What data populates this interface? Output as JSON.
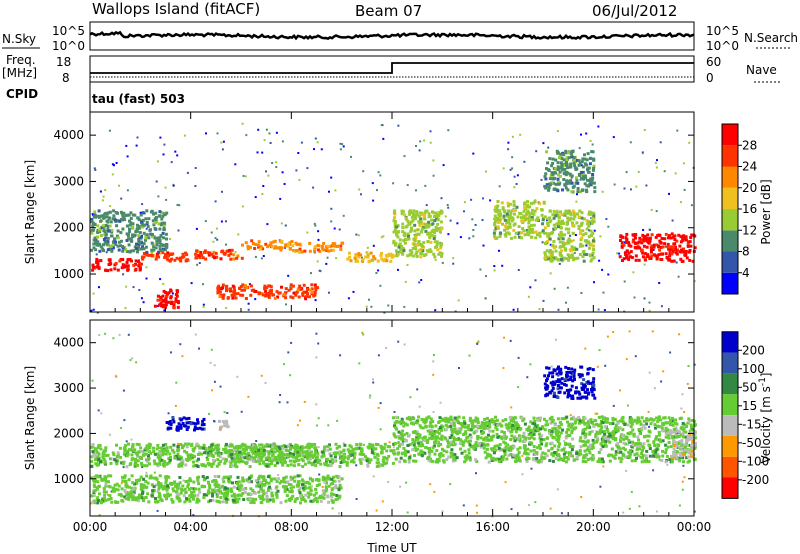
{
  "header": {
    "site": "Wallops Island (fitACF)",
    "beam": "Beam 07",
    "date": "06/Jul/2012"
  },
  "panels": {
    "nsky": {
      "label": "N.Sky",
      "right_label": "N.Search",
      "ticks_left": [
        "10^5",
        "10^0"
      ],
      "ticks_right": [
        "10^5",
        "10^0"
      ]
    },
    "freq": {
      "label_line1": "Freq.",
      "label_line2": "[MHz]",
      "right_label": "Nave",
      "ticks_left": [
        "18",
        "8"
      ],
      "ticks_right": [
        "60",
        "0"
      ]
    },
    "cpid": {
      "label": "CPID",
      "value": "tau (fast) 503"
    }
  },
  "colors": {
    "power": [
      "#0000ff",
      "#3355aa",
      "#4a8a6a",
      "#99cc33",
      "#f0c020",
      "#ff8800",
      "#ff3300",
      "#ff0000"
    ],
    "velocity": [
      "#ff0000",
      "#ff5500",
      "#ff9900",
      "#bbbbbb",
      "#66cc33",
      "#338844",
      "#3355aa",
      "#0000cc"
    ]
  },
  "chart_data": [
    {
      "type": "heatmap",
      "title": "",
      "xlabel": "",
      "ylabel": "Slant Range [km]",
      "x_ticks": [
        "00:00",
        "04:00",
        "08:00",
        "12:00",
        "16:00",
        "20:00",
        "00:00"
      ],
      "xlim": [
        0,
        24
      ],
      "ylim": [
        180,
        4500
      ],
      "y_ticks": [
        1000,
        2000,
        3000,
        4000
      ],
      "colorbar": {
        "label": "Power [dB]",
        "ticks": [
          "4",
          "8",
          "12",
          "16",
          "20",
          "24",
          "28"
        ],
        "range": [
          0,
          32
        ]
      },
      "bands": [
        {
          "x": [
            0.0,
            2.0
          ],
          "y": [
            1100,
            1350
          ],
          "v": 28
        },
        {
          "x": [
            2.0,
            4.0
          ],
          "y": [
            1300,
            1500
          ],
          "v": 26
        },
        {
          "x": [
            4.0,
            6.0
          ],
          "y": [
            1350,
            1550
          ],
          "v": 27
        },
        {
          "x": [
            6.0,
            8.0
          ],
          "y": [
            1550,
            1750
          ],
          "v": 22
        },
        {
          "x": [
            8.0,
            10.0
          ],
          "y": [
            1500,
            1700
          ],
          "v": 20
        },
        {
          "x": [
            10.0,
            12.0
          ],
          "y": [
            1300,
            1500
          ],
          "v": 18
        },
        {
          "x": [
            2.5,
            3.5
          ],
          "y": [
            300,
            700
          ],
          "v": 28
        },
        {
          "x": [
            5.0,
            9.0
          ],
          "y": [
            500,
            800
          ],
          "v": 26
        },
        {
          "x": [
            0.0,
            3.0
          ],
          "y": [
            1500,
            2400
          ],
          "v": 10
        },
        {
          "x": [
            12.0,
            14.0
          ],
          "y": [
            1400,
            2400
          ],
          "v": 14
        },
        {
          "x": [
            16.0,
            18.0
          ],
          "y": [
            1800,
            2600
          ],
          "v": 14
        },
        {
          "x": [
            18.0,
            20.0
          ],
          "y": [
            1300,
            2400
          ],
          "v": 14
        },
        {
          "x": [
            21.0,
            24.0
          ],
          "y": [
            1300,
            1900
          ],
          "v": 28
        },
        {
          "x": [
            18.0,
            20.0
          ],
          "y": [
            2800,
            3700
          ],
          "v": 8
        }
      ]
    },
    {
      "type": "heatmap",
      "title": "",
      "xlabel": "Time UT",
      "ylabel": "Slant Range [km]",
      "x_ticks": [
        "00:00",
        "04:00",
        "08:00",
        "12:00",
        "16:00",
        "20:00",
        "00:00"
      ],
      "xlim": [
        0,
        24
      ],
      "ylim": [
        180,
        4500
      ],
      "y_ticks": [
        1000,
        2000,
        3000,
        4000
      ],
      "colorbar": {
        "label": "Velocity [m s",
        "label_exp": "-1",
        "label_end": "]",
        "ticks": [
          "-200",
          "-100",
          "-50",
          "-15",
          "15",
          "50",
          "100",
          "200"
        ],
        "range": [
          -250,
          250
        ]
      },
      "bands": [
        {
          "x": [
            0.0,
            12.0
          ],
          "y": [
            1300,
            1800
          ],
          "v": 0
        },
        {
          "x": [
            0.0,
            10.0
          ],
          "y": [
            500,
            1100
          ],
          "v": 0
        },
        {
          "x": [
            12.0,
            24.0
          ],
          "y": [
            1400,
            2400
          ],
          "v": 0
        },
        {
          "x": [
            5.0,
            9.0
          ],
          "y": [
            1400,
            1800
          ],
          "v": 40
        },
        {
          "x": [
            18.0,
            20.0
          ],
          "y": [
            2800,
            3500
          ],
          "v": 220
        },
        {
          "x": [
            3.0,
            4.5
          ],
          "y": [
            2100,
            2400
          ],
          "v": 200
        },
        {
          "x": [
            5.0,
            5.5
          ],
          "y": [
            2100,
            2300
          ],
          "v": -40
        },
        {
          "x": [
            23.0,
            24.0
          ],
          "y": [
            1500,
            2100
          ],
          "v": -60
        }
      ]
    }
  ]
}
